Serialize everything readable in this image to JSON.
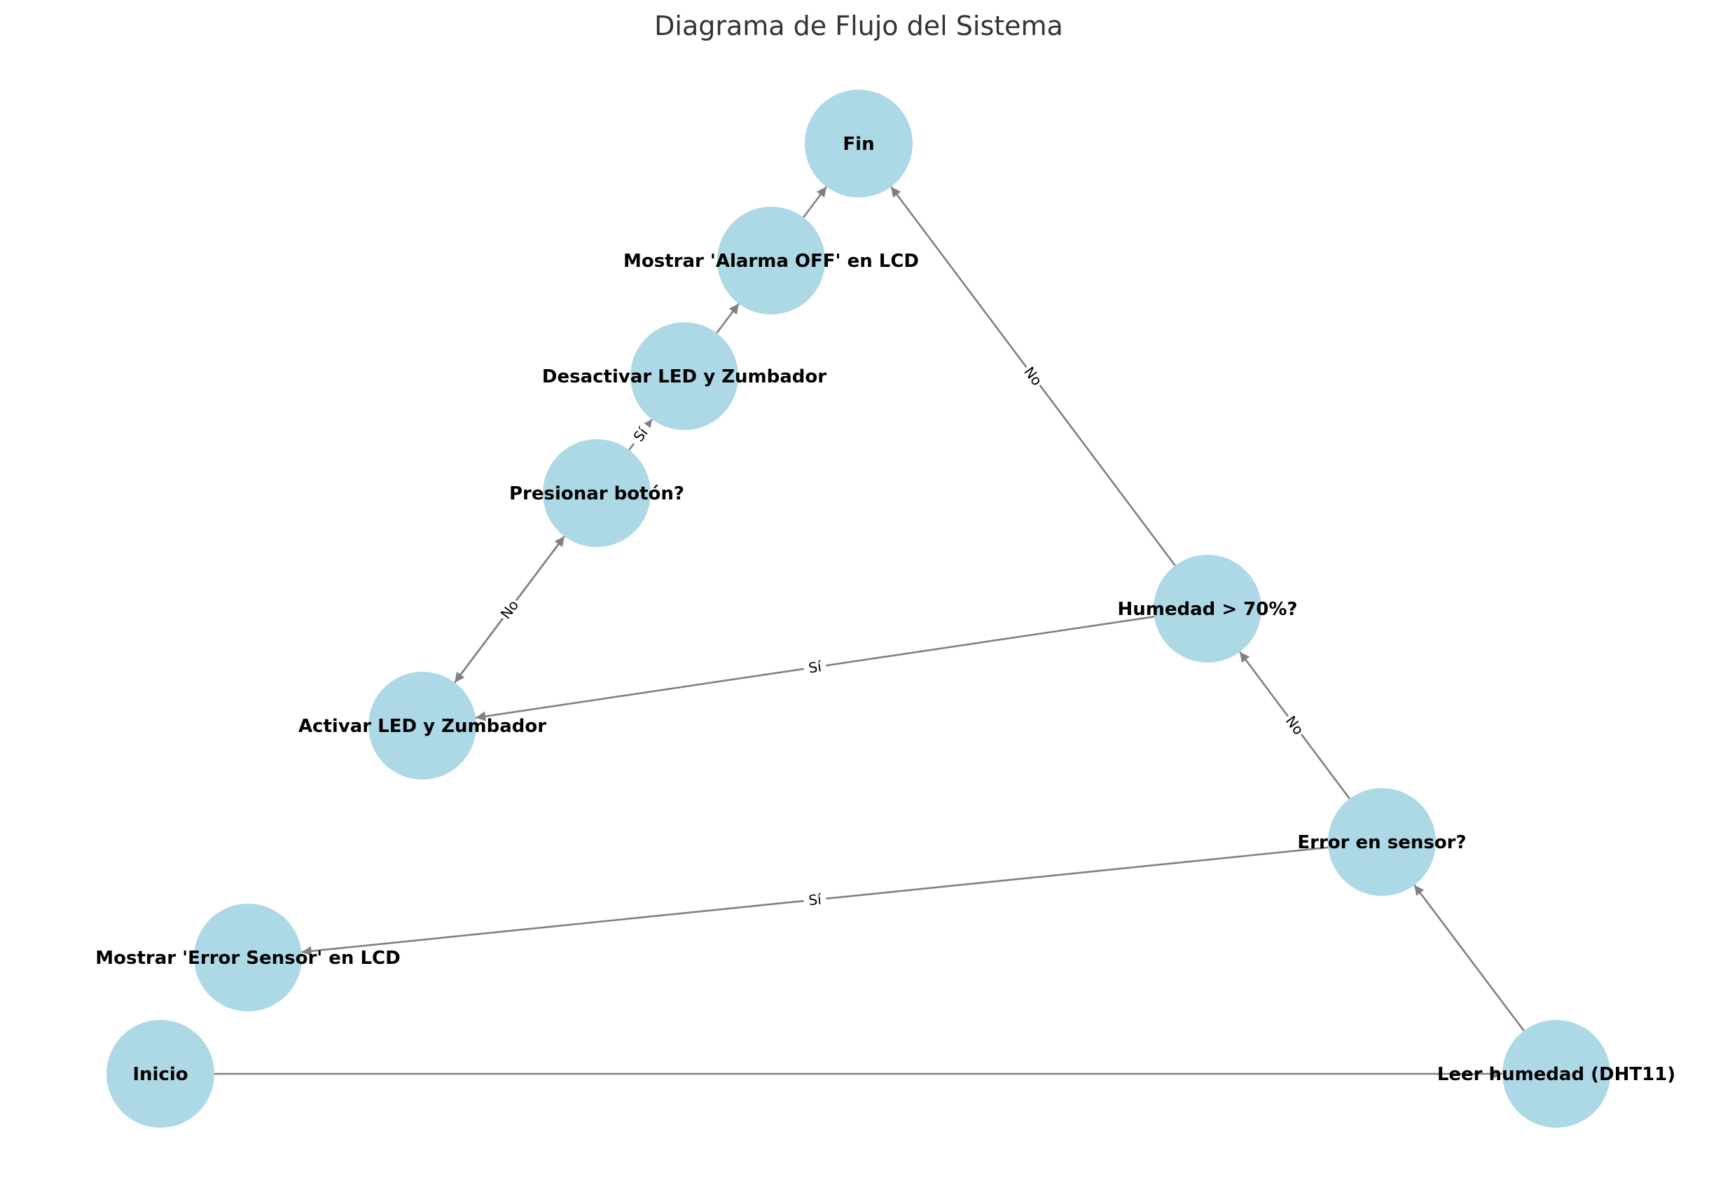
{
  "title": "Diagrama de Flujo del Sistema",
  "colors": {
    "node_fill": "#add8e6",
    "edge": "#808080",
    "label_bg": "#ffffff"
  },
  "nodes": [
    {
      "id": "inicio",
      "label": "Inicio"
    },
    {
      "id": "leer",
      "label": "Leer humedad (DHT11)"
    },
    {
      "id": "error",
      "label": "Error en sensor?"
    },
    {
      "id": "mostrar_error",
      "label": "Mostrar 'Error Sensor' en LCD"
    },
    {
      "id": "humedad",
      "label": "Humedad > 70%?"
    },
    {
      "id": "activar",
      "label": "Activar LED y Zumbador"
    },
    {
      "id": "presionar",
      "label": "Presionar botón?"
    },
    {
      "id": "desactivar",
      "label": "Desactivar LED y Zumbador"
    },
    {
      "id": "mostrar_off",
      "label": "Mostrar 'Alarma OFF' en LCD"
    },
    {
      "id": "fin",
      "label": "Fin"
    }
  ],
  "edges": [
    {
      "from": "inicio",
      "to": "leer",
      "label": ""
    },
    {
      "from": "leer",
      "to": "error",
      "label": ""
    },
    {
      "from": "error",
      "to": "mostrar_error",
      "label": "Sí"
    },
    {
      "from": "error",
      "to": "humedad",
      "label": "No"
    },
    {
      "from": "humedad",
      "to": "activar",
      "label": "Sí"
    },
    {
      "from": "humedad",
      "to": "fin",
      "label": "No"
    },
    {
      "from": "activar",
      "to": "presionar",
      "label": ""
    },
    {
      "from": "presionar",
      "to": "activar",
      "label": "No"
    },
    {
      "from": "presionar",
      "to": "desactivar",
      "label": "Sí"
    },
    {
      "from": "desactivar",
      "to": "mostrar_off",
      "label": ""
    },
    {
      "from": "mostrar_off",
      "to": "fin",
      "label": ""
    }
  ]
}
